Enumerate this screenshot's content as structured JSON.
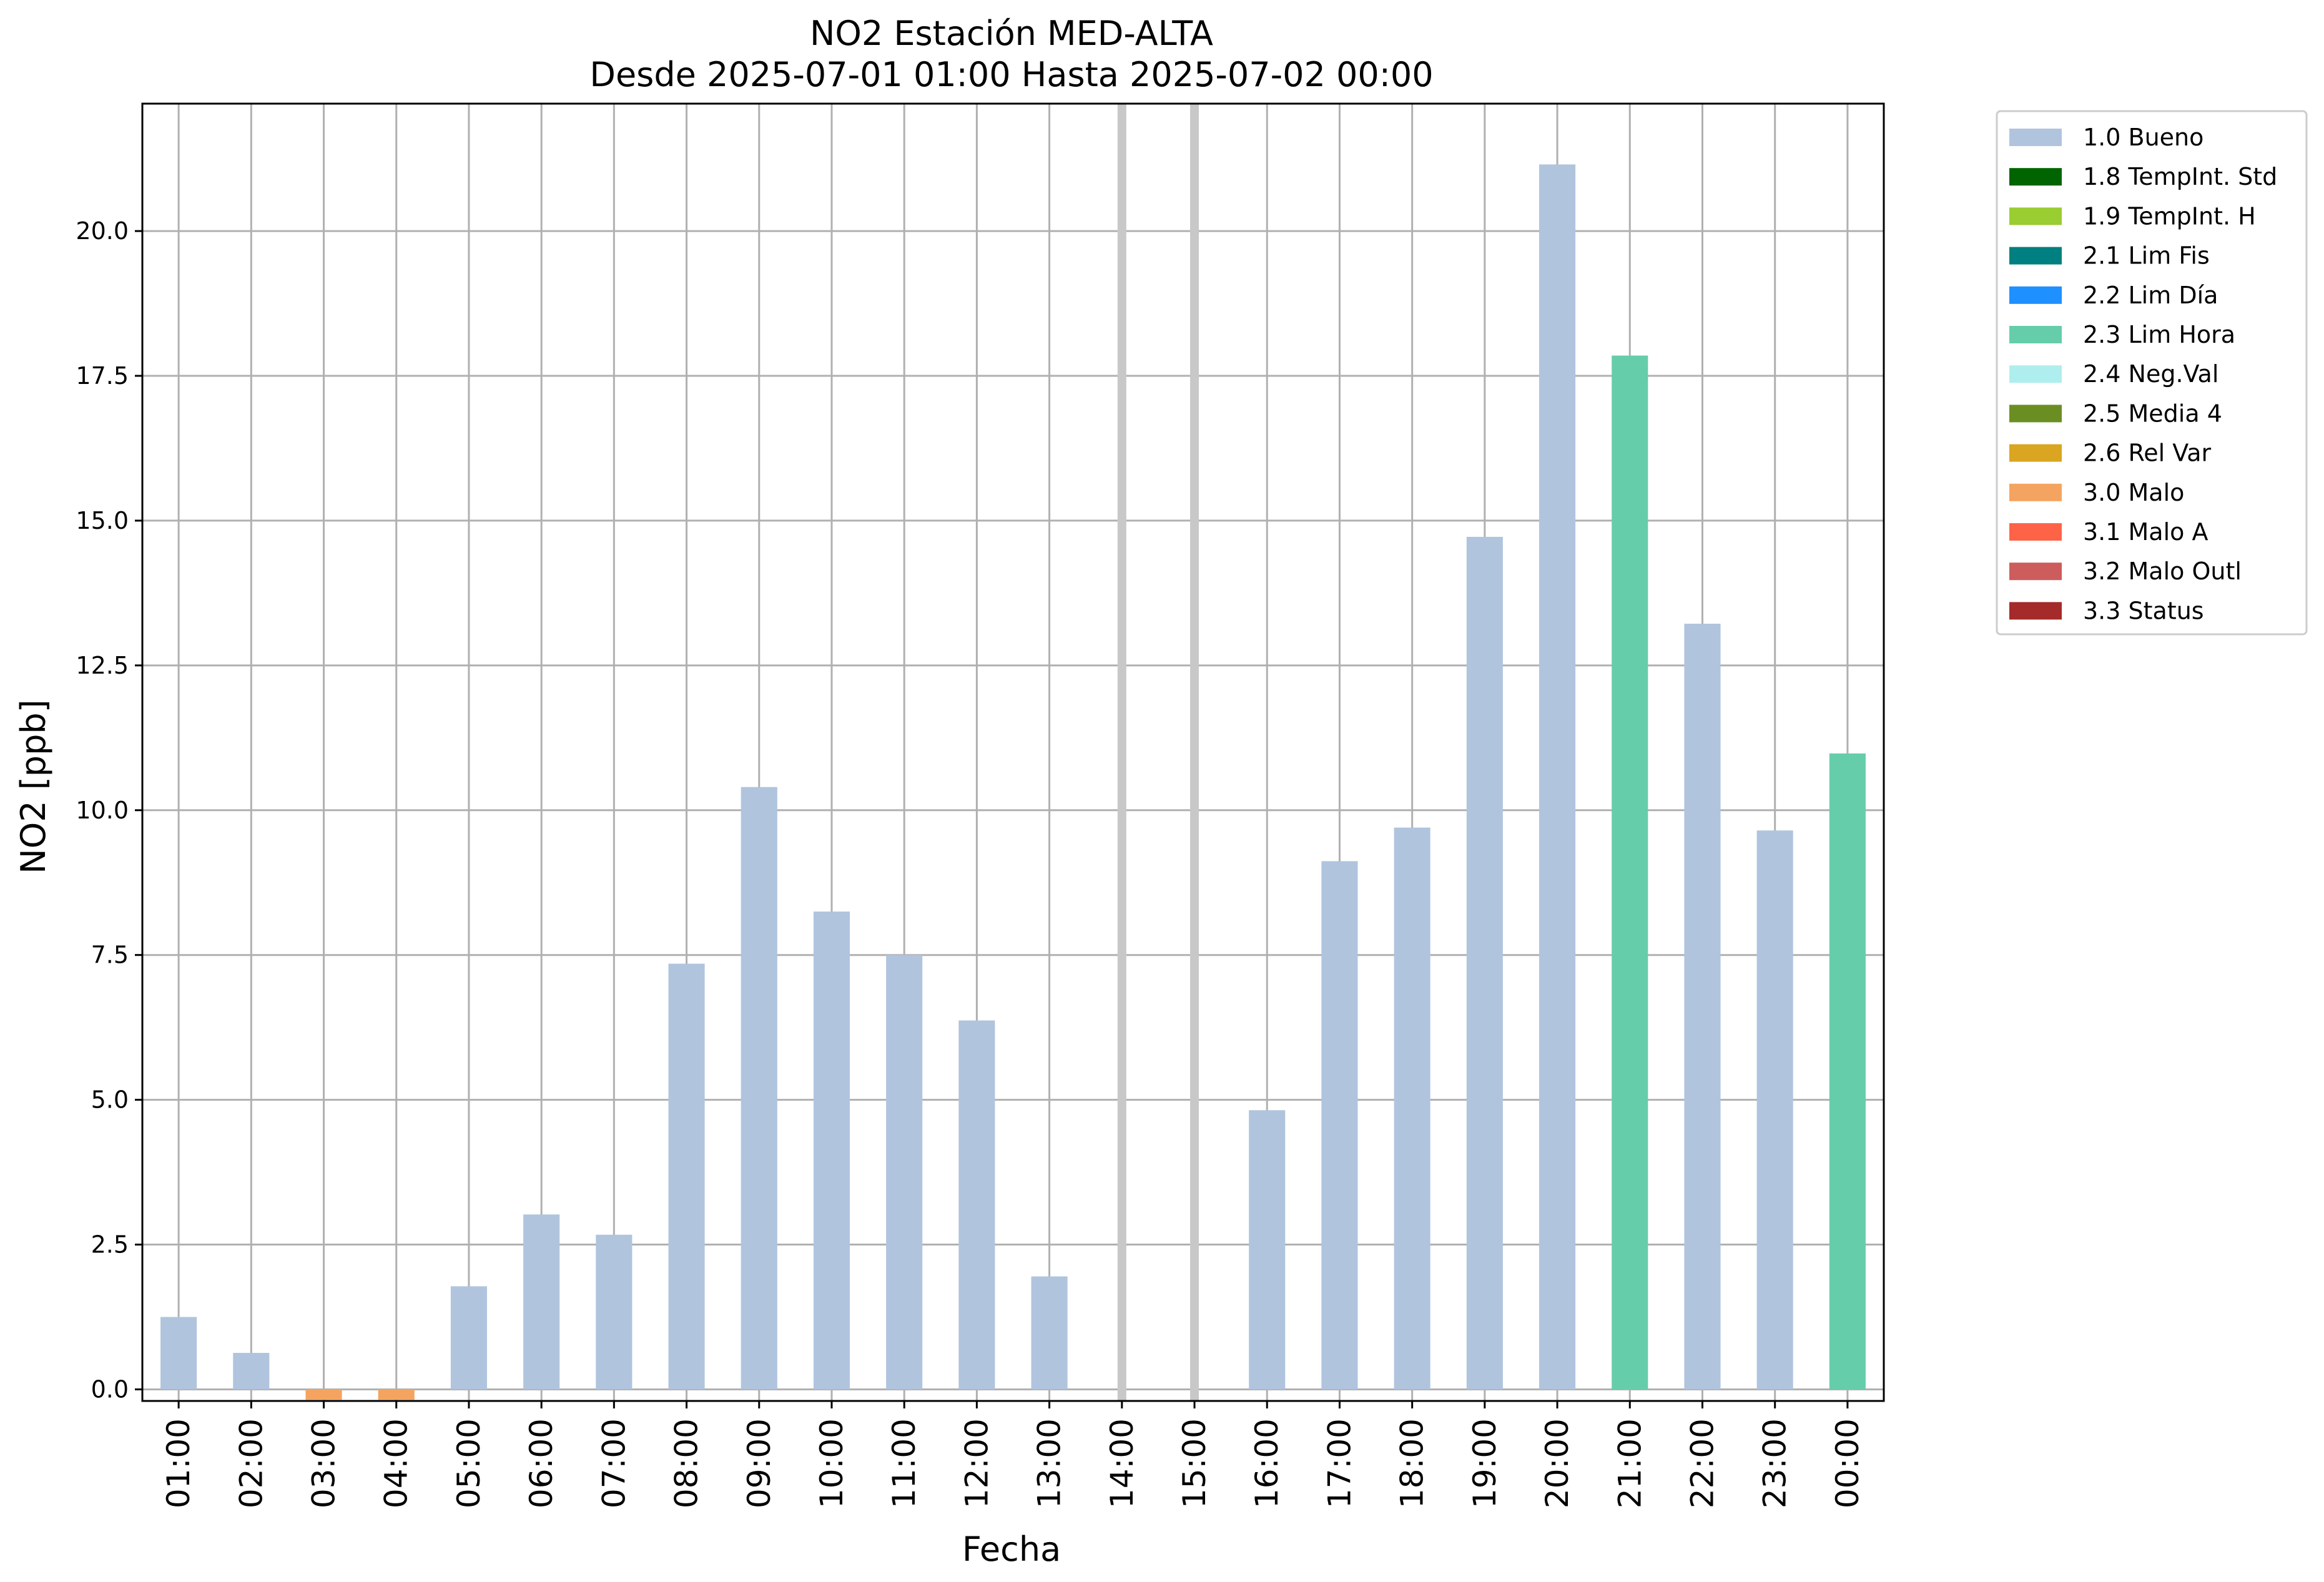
{
  "chart_data": {
    "type": "bar",
    "title_line1": "NO2 Estación MED-ALTA",
    "title_line2": "Desde 2025-07-01 01:00 Hasta 2025-07-02 00:00",
    "xlabel": "Fecha",
    "ylabel": "NO2 [ppb]",
    "ylim": [
      -0.2,
      22.2
    ],
    "yticks": [
      "0.0",
      "2.5",
      "5.0",
      "7.5",
      "10.0",
      "12.5",
      "15.0",
      "17.5",
      "20.0"
    ],
    "grid": true,
    "legend_position": "outside-upper-right",
    "categories": [
      "01:00",
      "02:00",
      "03:00",
      "04:00",
      "05:00",
      "06:00",
      "07:00",
      "08:00",
      "09:00",
      "10:00",
      "11:00",
      "12:00",
      "13:00",
      "14:00",
      "15:00",
      "16:00",
      "17:00",
      "18:00",
      "19:00",
      "20:00",
      "21:00",
      "22:00",
      "23:00",
      "00:00"
    ],
    "values": [
      1.25,
      0.63,
      -0.18,
      -0.18,
      1.78,
      3.02,
      2.67,
      7.35,
      10.4,
      8.25,
      7.5,
      6.37,
      1.95,
      null,
      null,
      4.82,
      9.12,
      9.7,
      14.72,
      21.15,
      17.85,
      13.22,
      9.65,
      10.98
    ],
    "flags": [
      "1.0 Bueno",
      "1.0 Bueno",
      "3.0 Malo",
      "3.0 Malo",
      "1.0 Bueno",
      "1.0 Bueno",
      "1.0 Bueno",
      "1.0 Bueno",
      "1.0 Bueno",
      "1.0 Bueno",
      "1.0 Bueno",
      "1.0 Bueno",
      "1.0 Bueno",
      null,
      null,
      "1.0 Bueno",
      "1.0 Bueno",
      "1.0 Bueno",
      "1.0 Bueno",
      "1.0 Bueno",
      "2.3 Lim Hora",
      "1.0 Bueno",
      "1.0 Bueno",
      "2.3 Lim Hora"
    ],
    "missing_markers": [
      "14:00",
      "15:00"
    ],
    "legend": [
      {
        "label": "1.0 Bueno",
        "color": "#b0c4de"
      },
      {
        "label": "1.8 TempInt. Std",
        "color": "#006400"
      },
      {
        "label": "1.9 TempInt. H",
        "color": "#9acd32"
      },
      {
        "label": "2.1 Lim Fis",
        "color": "#008080"
      },
      {
        "label": "2.2 Lim Día",
        "color": "#1e90ff"
      },
      {
        "label": "2.3 Lim Hora",
        "color": "#66cdaa"
      },
      {
        "label": "2.4 Neg.Val",
        "color": "#afeeee"
      },
      {
        "label": "2.5 Media 4",
        "color": "#6b8e23"
      },
      {
        "label": "2.6 Rel Var",
        "color": "#daa520"
      },
      {
        "label": "3.0 Malo",
        "color": "#f4a460"
      },
      {
        "label": "3.1 Malo A",
        "color": "#ff6347"
      },
      {
        "label": "3.2 Malo Outl",
        "color": "#cd5c5c"
      },
      {
        "label": "3.3 Status",
        "color": "#a52a2a"
      }
    ]
  }
}
